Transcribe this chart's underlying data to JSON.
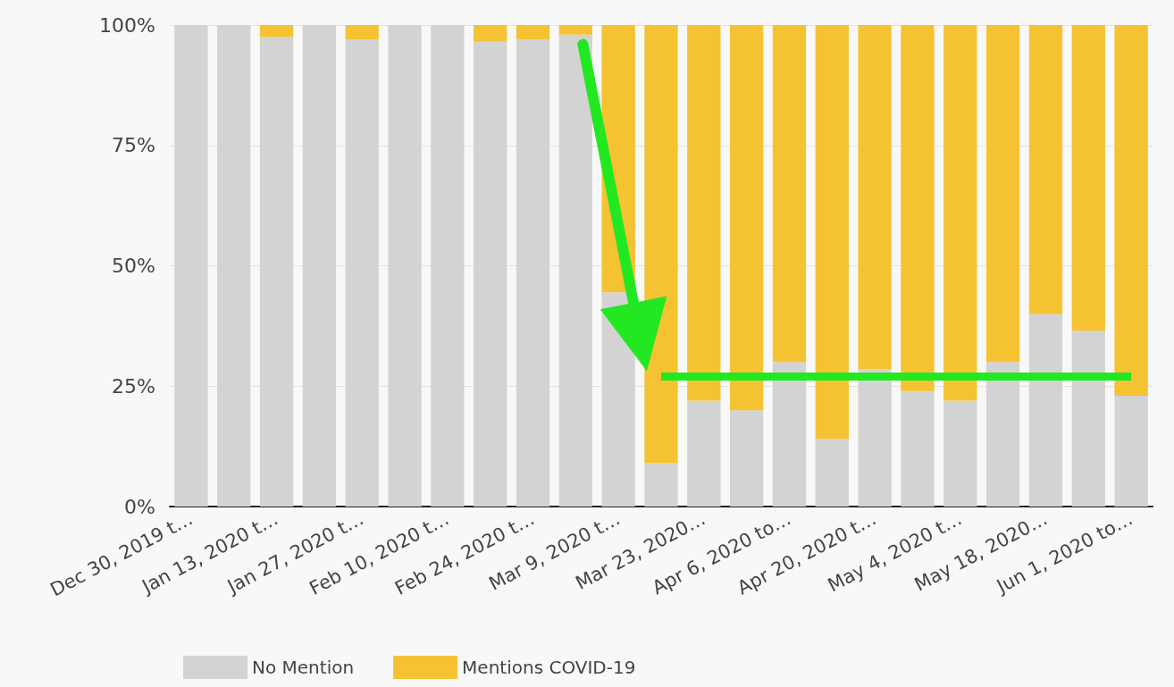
{
  "chart_data": {
    "type": "bar",
    "stacked": true,
    "categories": [
      "Dec 30, 2019 t…",
      null,
      "Jan 13, 2020 t…",
      null,
      "Jan 27, 2020 t…",
      null,
      "Feb 10, 2020 t…",
      null,
      "Feb 24, 2020 t…",
      null,
      "Mar 9, 2020 t…",
      null,
      "Mar 23, 2020…",
      null,
      "Apr 6, 2020 to…",
      null,
      "Apr 20, 2020 t…",
      null,
      "May 4, 2020 t…",
      null,
      "May 18, 2020…",
      null,
      "Jun 1, 2020 to…"
    ],
    "series": [
      {
        "name": "No Mention",
        "color": "#d3d3d3",
        "values": [
          100,
          100,
          97.5,
          100,
          97,
          100,
          100,
          96.5,
          97,
          98,
          44.5,
          9,
          22,
          20,
          30,
          14,
          28.5,
          24,
          22,
          30,
          40,
          36.5,
          23
        ]
      },
      {
        "name": "Mentions COVID-19",
        "color": "#f5c232",
        "values": [
          0,
          0,
          2.5,
          0,
          3,
          0,
          0,
          3.5,
          3,
          2,
          55.5,
          91,
          78,
          80,
          70,
          86,
          71.5,
          76,
          78,
          70,
          60,
          63.5,
          77
        ]
      }
    ],
    "ylim": [
      0,
      100
    ],
    "yticks": [
      {
        "value": 0,
        "label": "0%"
      },
      {
        "value": 25,
        "label": "25%"
      },
      {
        "value": 50,
        "label": "50%"
      },
      {
        "value": 75,
        "label": "75%"
      },
      {
        "value": 100,
        "label": "100%"
      }
    ],
    "grid": "y",
    "legend": "bottom left",
    "ref_lines": [
      {
        "axis": "y",
        "value": 27,
        "color": "#22e822"
      }
    ]
  }
}
